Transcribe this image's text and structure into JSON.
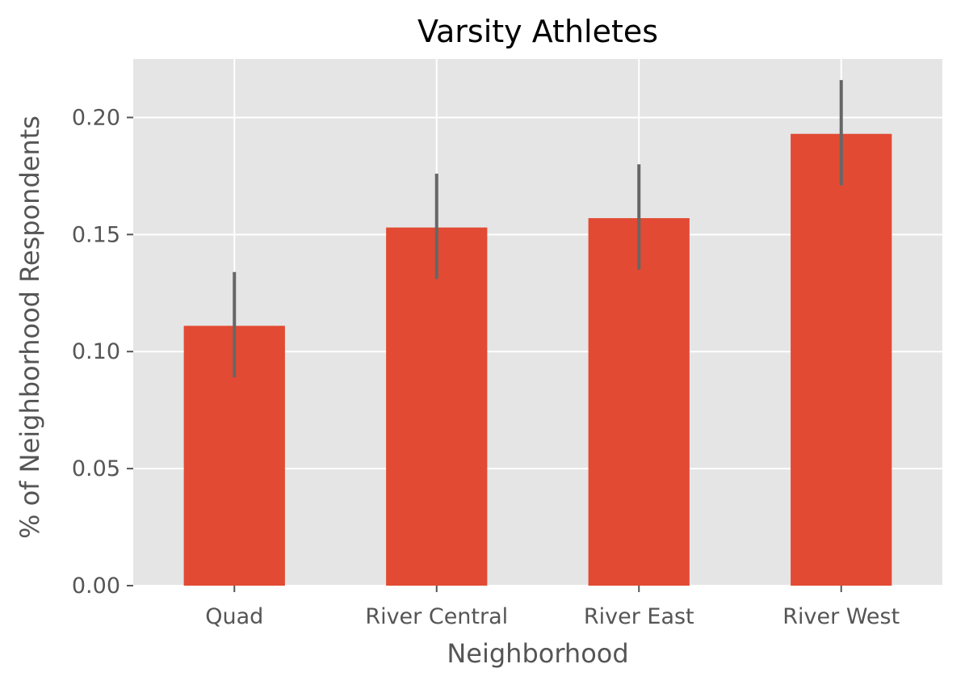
{
  "chart_data": {
    "type": "bar",
    "title": "Varsity Athletes",
    "xlabel": "Neighborhood",
    "ylabel": "% of Neighborhood Respondents",
    "categories": [
      "Quad",
      "River Central",
      "River East",
      "River West"
    ],
    "values": [
      0.111,
      0.153,
      0.157,
      0.193
    ],
    "error_low": [
      0.089,
      0.131,
      0.135,
      0.171
    ],
    "error_high": [
      0.134,
      0.176,
      0.18,
      0.216
    ],
    "ylim": [
      0,
      0.225
    ],
    "yticks": [
      0.0,
      0.05,
      0.1,
      0.15,
      0.2
    ],
    "ytick_labels": [
      "0.00",
      "0.05",
      "0.10",
      "0.15",
      "0.20"
    ],
    "grid": true,
    "colors": {
      "bar": "#E24A33",
      "error_bar": "#666666",
      "plot_background": "#E5E5E5",
      "grid": "#FFFFFF",
      "text": "#555555"
    }
  }
}
